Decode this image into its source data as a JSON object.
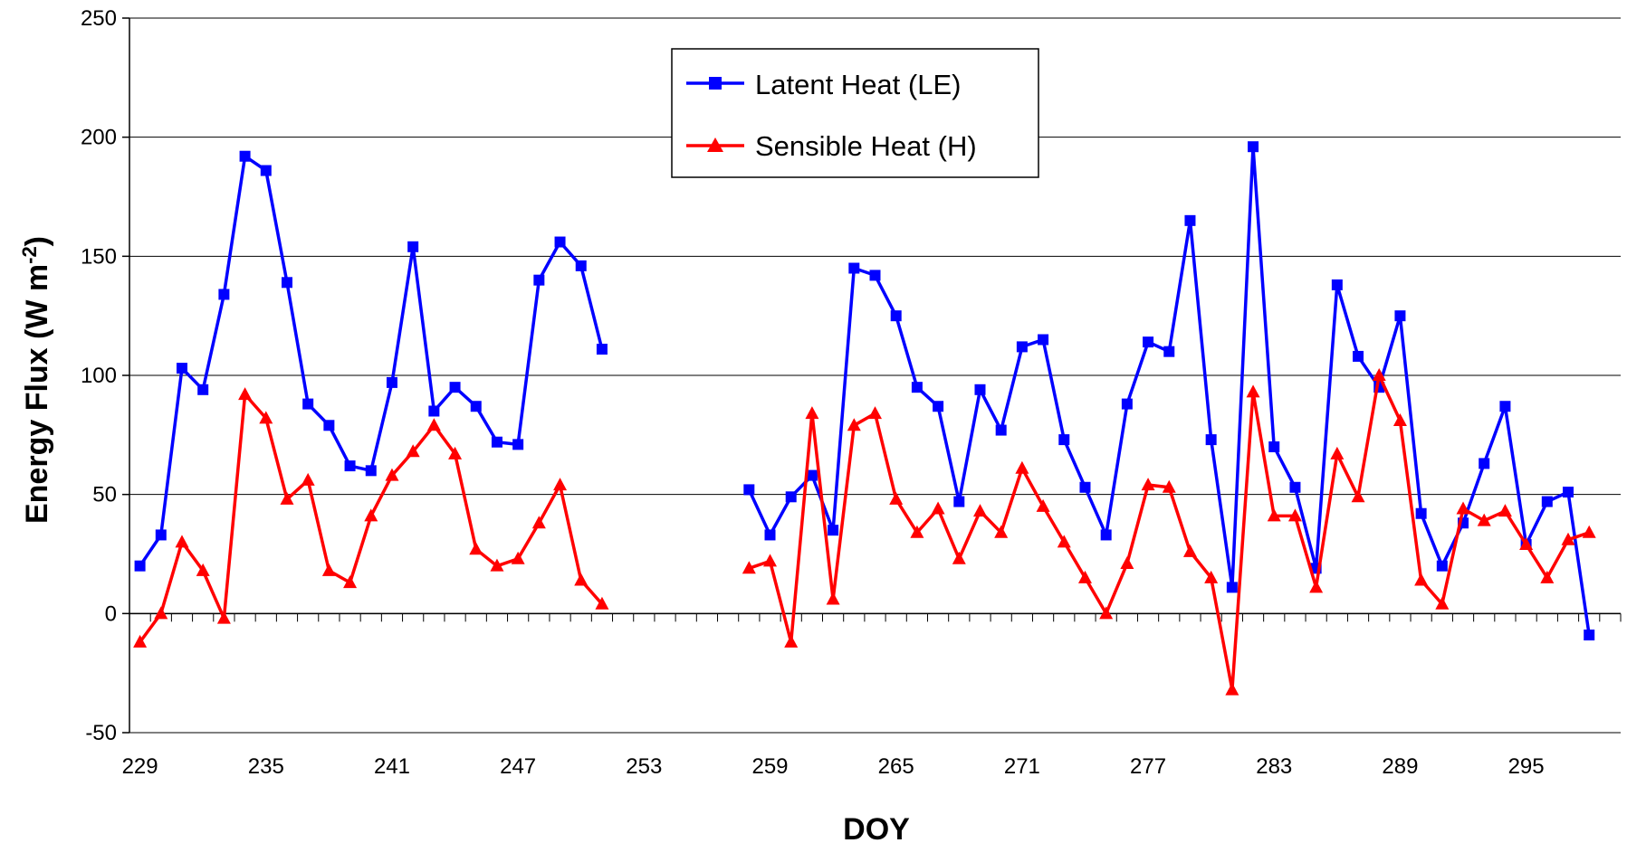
{
  "chart_data": {
    "type": "line",
    "xlabel": "DOY",
    "ylabel": "Energy Flux (W m",
    "ylabel_sup": "-2",
    "ylabel_close": ")",
    "ylim": [
      -50,
      250
    ],
    "yticks": [
      -50,
      0,
      50,
      100,
      150,
      200,
      250
    ],
    "xlim": [
      228.5,
      299.5
    ],
    "xticks": [
      229,
      235,
      241,
      247,
      253,
      259,
      265,
      271,
      277,
      283,
      289,
      295
    ],
    "grid": "horizontal",
    "legend_position": "top-center",
    "series": [
      {
        "name": "Latent Heat (LE)",
        "color": "#0000ff",
        "marker": "square",
        "points": [
          [
            229,
            20
          ],
          [
            230,
            33
          ],
          [
            231,
            103
          ],
          [
            232,
            94
          ],
          [
            233,
            134
          ],
          [
            234,
            192
          ],
          [
            235,
            186
          ],
          [
            236,
            139
          ],
          [
            237,
            88
          ],
          [
            238,
            79
          ],
          [
            239,
            62
          ],
          [
            240,
            60
          ],
          [
            241,
            97
          ],
          [
            242,
            154
          ],
          [
            243,
            85
          ],
          [
            244,
            95
          ],
          [
            245,
            87
          ],
          [
            246,
            72
          ],
          [
            247,
            71
          ],
          [
            248,
            140
          ],
          [
            249,
            156
          ],
          [
            250,
            146
          ],
          [
            251,
            111
          ],
          [
            258,
            52
          ],
          [
            259,
            33
          ],
          [
            260,
            49
          ],
          [
            261,
            58
          ],
          [
            262,
            35
          ],
          [
            263,
            145
          ],
          [
            264,
            142
          ],
          [
            265,
            125
          ],
          [
            266,
            95
          ],
          [
            267,
            87
          ],
          [
            268,
            47
          ],
          [
            269,
            94
          ],
          [
            270,
            77
          ],
          [
            271,
            112
          ],
          [
            272,
            115
          ],
          [
            273,
            73
          ],
          [
            274,
            53
          ],
          [
            275,
            33
          ],
          [
            276,
            88
          ],
          [
            277,
            114
          ],
          [
            278,
            110
          ],
          [
            279,
            165
          ],
          [
            280,
            73
          ],
          [
            281,
            11
          ],
          [
            282,
            196
          ],
          [
            283,
            70
          ],
          [
            284,
            53
          ],
          [
            285,
            19
          ],
          [
            286,
            138
          ],
          [
            287,
            108
          ],
          [
            288,
            95
          ],
          [
            289,
            125
          ],
          [
            290,
            42
          ],
          [
            291,
            20
          ],
          [
            292,
            38
          ],
          [
            293,
            63
          ],
          [
            294,
            87
          ],
          [
            295,
            29
          ],
          [
            296,
            47
          ],
          [
            297,
            51
          ],
          [
            298,
            -9
          ]
        ]
      },
      {
        "name": "Sensible Heat (H)",
        "color": "#ff0000",
        "marker": "triangle",
        "points": [
          [
            229,
            -12
          ],
          [
            230,
            0
          ],
          [
            231,
            30
          ],
          [
            232,
            18
          ],
          [
            233,
            -2
          ],
          [
            234,
            92
          ],
          [
            235,
            82
          ],
          [
            236,
            48
          ],
          [
            237,
            56
          ],
          [
            238,
            18
          ],
          [
            239,
            13
          ],
          [
            240,
            41
          ],
          [
            241,
            58
          ],
          [
            242,
            68
          ],
          [
            243,
            79
          ],
          [
            244,
            67
          ],
          [
            245,
            27
          ],
          [
            246,
            20
          ],
          [
            247,
            23
          ],
          [
            248,
            38
          ],
          [
            249,
            54
          ],
          [
            250,
            14
          ],
          [
            251,
            4
          ],
          [
            258,
            19
          ],
          [
            259,
            22
          ],
          [
            260,
            -12
          ],
          [
            261,
            84
          ],
          [
            262,
            6
          ],
          [
            263,
            79
          ],
          [
            264,
            84
          ],
          [
            265,
            48
          ],
          [
            266,
            34
          ],
          [
            267,
            44
          ],
          [
            268,
            23
          ],
          [
            269,
            43
          ],
          [
            270,
            34
          ],
          [
            271,
            61
          ],
          [
            272,
            45
          ],
          [
            273,
            30
          ],
          [
            274,
            15
          ],
          [
            275,
            0
          ],
          [
            276,
            21
          ],
          [
            277,
            54
          ],
          [
            278,
            53
          ],
          [
            279,
            26
          ],
          [
            280,
            15
          ],
          [
            281,
            -32
          ],
          [
            282,
            93
          ],
          [
            283,
            41
          ],
          [
            284,
            41
          ],
          [
            285,
            11
          ],
          [
            286,
            67
          ],
          [
            287,
            49
          ],
          [
            288,
            100
          ],
          [
            289,
            81
          ],
          [
            290,
            14
          ],
          [
            291,
            4
          ],
          [
            292,
            44
          ],
          [
            293,
            39
          ],
          [
            294,
            43
          ],
          [
            295,
            29
          ],
          [
            296,
            15
          ],
          [
            297,
            31
          ],
          [
            298,
            34
          ]
        ]
      }
    ]
  }
}
